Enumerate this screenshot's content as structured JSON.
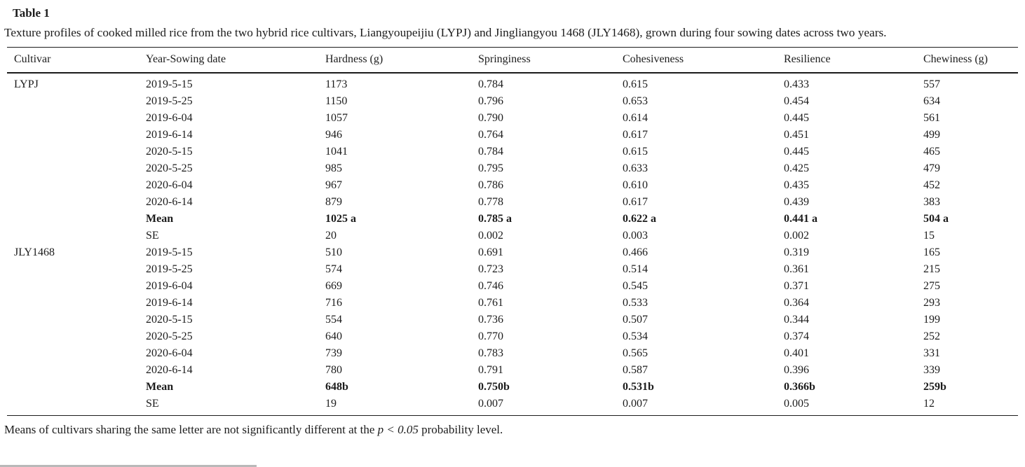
{
  "page": {
    "title": "Table 1",
    "caption": "Texture profiles of cooked milled rice from the two hybrid rice cultivars, Liangyoupeijiu (LYPJ) and Jingliangyou 1468 (JLY1468), grown during four sowing dates across two years.",
    "footnote": {
      "before": "Means of cultivars sharing the same letter are not significantly different at the ",
      "italic": "p < 0.05",
      "after": " probability level."
    },
    "colors": {
      "text": "#1c1c1c",
      "rule": "#1b1b1b"
    }
  },
  "chart_data": {
    "type": "table",
    "title": "Texture profiles of cooked milled rice (LYPJ vs JLY1468)",
    "columns": [
      "Cultivar",
      "Year-Sowing date",
      "Hardness (g)",
      "Springiness",
      "Cohesiveness",
      "Resilience",
      "Chewiness (g)"
    ],
    "rows": [
      {
        "bold": false,
        "cells": [
          "LYPJ",
          "2019-5-15",
          "1173",
          "0.784",
          "0.615",
          "0.433",
          "557"
        ]
      },
      {
        "bold": false,
        "cells": [
          "",
          "2019-5-25",
          "1150",
          "0.796",
          "0.653",
          "0.454",
          "634"
        ]
      },
      {
        "bold": false,
        "cells": [
          "",
          "2019-6-04",
          "1057",
          "0.790",
          "0.614",
          "0.445",
          "561"
        ]
      },
      {
        "bold": false,
        "cells": [
          "",
          "2019-6-14",
          "946",
          "0.764",
          "0.617",
          "0.451",
          "499"
        ]
      },
      {
        "bold": false,
        "cells": [
          "",
          "2020-5-15",
          "1041",
          "0.784",
          "0.615",
          "0.445",
          "465"
        ]
      },
      {
        "bold": false,
        "cells": [
          "",
          "2020-5-25",
          "985",
          "0.795",
          "0.633",
          "0.425",
          "479"
        ]
      },
      {
        "bold": false,
        "cells": [
          "",
          "2020-6-04",
          "967",
          "0.786",
          "0.610",
          "0.435",
          "452"
        ]
      },
      {
        "bold": false,
        "cells": [
          "",
          "2020-6-14",
          "879",
          "0.778",
          "0.617",
          "0.439",
          "383"
        ]
      },
      {
        "bold": true,
        "cells": [
          "",
          "Mean",
          "1025 a",
          "0.785 a",
          "0.622 a",
          "0.441 a",
          "504 a"
        ]
      },
      {
        "bold": false,
        "cells": [
          "",
          "SE",
          "20",
          "0.002",
          "0.003",
          "0.002",
          "15"
        ]
      },
      {
        "bold": false,
        "cells": [
          "JLY1468",
          "2019-5-15",
          "510",
          "0.691",
          "0.466",
          "0.319",
          "165"
        ]
      },
      {
        "bold": false,
        "cells": [
          "",
          "2019-5-25",
          "574",
          "0.723",
          "0.514",
          "0.361",
          "215"
        ]
      },
      {
        "bold": false,
        "cells": [
          "",
          "2019-6-04",
          "669",
          "0.746",
          "0.545",
          "0.371",
          "275"
        ]
      },
      {
        "bold": false,
        "cells": [
          "",
          "2019-6-14",
          "716",
          "0.761",
          "0.533",
          "0.364",
          "293"
        ]
      },
      {
        "bold": false,
        "cells": [
          "",
          "2020-5-15",
          "554",
          "0.736",
          "0.507",
          "0.344",
          "199"
        ]
      },
      {
        "bold": false,
        "cells": [
          "",
          "2020-5-25",
          "640",
          "0.770",
          "0.534",
          "0.374",
          "252"
        ]
      },
      {
        "bold": false,
        "cells": [
          "",
          "2020-6-04",
          "739",
          "0.783",
          "0.565",
          "0.401",
          "331"
        ]
      },
      {
        "bold": false,
        "cells": [
          "",
          "2020-6-14",
          "780",
          "0.791",
          "0.587",
          "0.396",
          "339"
        ]
      },
      {
        "bold": true,
        "cells": [
          "",
          "Mean",
          "648b",
          "0.750b",
          "0.531b",
          "0.366b",
          "259b"
        ]
      },
      {
        "bold": false,
        "cells": [
          "",
          "SE",
          "19",
          "0.007",
          "0.007",
          "0.005",
          "12"
        ]
      }
    ]
  }
}
